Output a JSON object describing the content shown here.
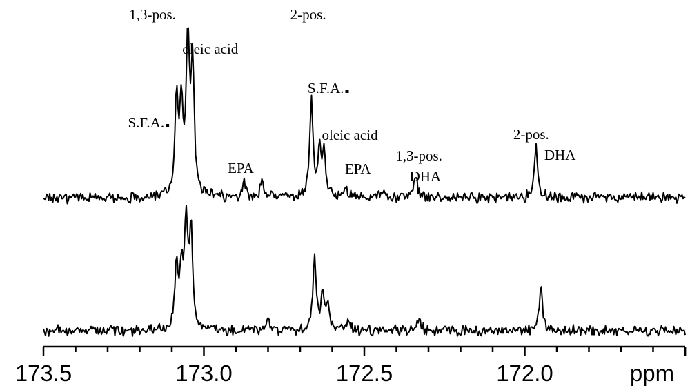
{
  "chart_data": {
    "type": "line",
    "xlabel": "ppm",
    "xlim": [
      173.5,
      171.5
    ],
    "x_reversed": true,
    "ticks": [
      "173.5",
      "173.0",
      "172.5",
      "172.0"
    ],
    "tick_values": [
      173.5,
      173.0,
      172.5,
      172.0
    ],
    "series": [
      {
        "peaks": [
          {
            "x": 173.085,
            "height": 0.62
          },
          {
            "x": 173.07,
            "height": 0.55
          },
          {
            "x": 173.05,
            "height": 1.0
          },
          {
            "x": 173.035,
            "height": 0.78
          },
          {
            "x": 172.875,
            "height": 0.1
          },
          {
            "x": 172.82,
            "height": 0.12
          },
          {
            "x": 172.665,
            "height": 0.62
          },
          {
            "x": 172.64,
            "height": 0.3
          },
          {
            "x": 172.625,
            "height": 0.28
          },
          {
            "x": 172.56,
            "height": 0.07
          },
          {
            "x": 172.44,
            "height": 0.07
          },
          {
            "x": 172.34,
            "height": 0.15
          },
          {
            "x": 171.965,
            "height": 0.32
          }
        ]
      },
      {
        "peaks": [
          {
            "x": 173.085,
            "height": 0.6
          },
          {
            "x": 173.07,
            "height": 0.55
          },
          {
            "x": 173.055,
            "height": 1.0
          },
          {
            "x": 173.04,
            "height": 0.95
          },
          {
            "x": 172.8,
            "height": 0.13
          },
          {
            "x": 172.655,
            "height": 0.72
          },
          {
            "x": 172.63,
            "height": 0.32
          },
          {
            "x": 172.615,
            "height": 0.26
          },
          {
            "x": 172.55,
            "height": 0.12
          },
          {
            "x": 172.33,
            "height": 0.12
          },
          {
            "x": 171.95,
            "height": 0.42
          }
        ]
      }
    ],
    "annotations": [
      {
        "text": "1,3-pos.",
        "x": 173.16
      },
      {
        "text": "oleic acid",
        "x": 172.98
      },
      {
        "text": "S.F.A.",
        "x": 173.18
      },
      {
        "text": "EPA",
        "x": 172.885
      },
      {
        "text": "2-pos.",
        "x": 172.675
      },
      {
        "text": "S.F.A.",
        "x": 172.62
      },
      {
        "text": "oleic acid",
        "x": 172.545
      },
      {
        "text": "EPA",
        "x": 172.52
      },
      {
        "text": "1,3-pos.",
        "x": 172.33
      },
      {
        "text": "DHA",
        "x": 172.31
      },
      {
        "text": "2-pos.",
        "x": 171.98
      },
      {
        "text": "DHA",
        "x": 171.89
      }
    ]
  }
}
